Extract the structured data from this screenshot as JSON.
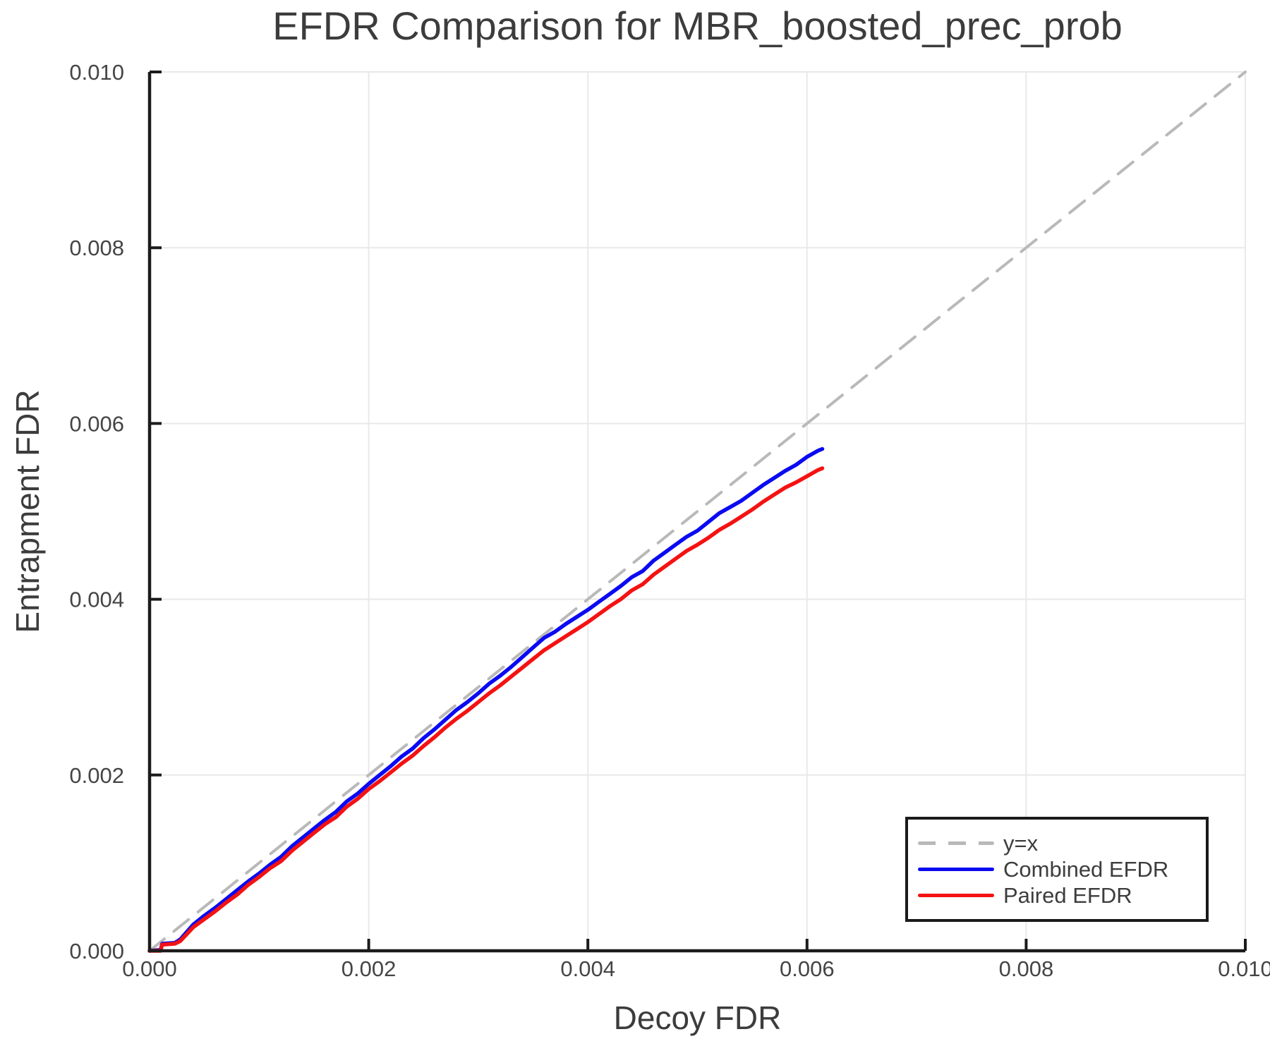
{
  "page": {
    "background": "#ffffff"
  },
  "chart_data": {
    "type": "line",
    "title": "EFDR Comparison for MBR_boosted_prec_prob",
    "xlabel": "Decoy FDR",
    "ylabel": "Entrapment FDR",
    "xlim": [
      0.0,
      0.01
    ],
    "ylim": [
      0.0,
      0.01
    ],
    "grid": true,
    "legend_position": "lower right",
    "xticks": {
      "values": [
        0.0,
        0.002,
        0.004,
        0.006,
        0.008,
        0.01
      ],
      "labels": [
        "0.000",
        "0.002",
        "0.004",
        "0.006",
        "0.008",
        "0.010"
      ]
    },
    "yticks": {
      "values": [
        0.0,
        0.002,
        0.004,
        0.006,
        0.008,
        0.01
      ],
      "labels": [
        "0.000",
        "0.002",
        "0.004",
        "0.006",
        "0.008",
        "0.010"
      ]
    },
    "colors": {
      "grid": "#e9e9e9",
      "spine": "#1b1b1b",
      "tick_label": "#454545",
      "title": "#3c3c3c"
    },
    "series": [
      {
        "name": "y=x",
        "line_style": "dashed",
        "color": "#b9b9b9",
        "points": [
          [
            0.0,
            0.0
          ],
          [
            0.01,
            0.01
          ]
        ]
      },
      {
        "name": "Combined EFDR",
        "line_style": "solid",
        "color": "#0a0af2",
        "points": [
          [
            0.0,
            0.0
          ],
          [
            0.0001,
            1e-05
          ],
          [
            0.000115,
            8e-05
          ],
          [
            0.00023,
            9e-05
          ],
          [
            0.00028,
            0.00013
          ],
          [
            0.0004,
            0.0003
          ],
          [
            0.0005,
            0.0004
          ],
          [
            0.0006,
            0.00049
          ],
          [
            0.0007,
            0.00059
          ],
          [
            0.0008,
            0.00069
          ],
          [
            0.0009,
            0.00079
          ],
          [
            0.001,
            0.00088
          ],
          [
            0.0011,
            0.00098
          ],
          [
            0.0012,
            0.00107
          ],
          [
            0.0013,
            0.00119
          ],
          [
            0.0014,
            0.00129
          ],
          [
            0.0015,
            0.00139
          ],
          [
            0.0016,
            0.00149
          ],
          [
            0.0017,
            0.00158
          ],
          [
            0.0018,
            0.0017
          ],
          [
            0.0019,
            0.00179
          ],
          [
            0.002,
            0.0019
          ],
          [
            0.0021,
            0.002
          ],
          [
            0.0022,
            0.0021
          ],
          [
            0.0023,
            0.00221
          ],
          [
            0.0024,
            0.0023
          ],
          [
            0.0025,
            0.00242
          ],
          [
            0.0026,
            0.00252
          ],
          [
            0.0027,
            0.00263
          ],
          [
            0.0028,
            0.00274
          ],
          [
            0.0029,
            0.00283
          ],
          [
            0.003,
            0.00293
          ],
          [
            0.0031,
            0.00304
          ],
          [
            0.0032,
            0.00313
          ],
          [
            0.0033,
            0.00323
          ],
          [
            0.0034,
            0.00334
          ],
          [
            0.0035,
            0.00345
          ],
          [
            0.0036,
            0.00356
          ],
          [
            0.0037,
            0.00363
          ],
          [
            0.0038,
            0.00372
          ],
          [
            0.0039,
            0.0038
          ],
          [
            0.004,
            0.00388
          ],
          [
            0.0041,
            0.00397
          ],
          [
            0.0042,
            0.00406
          ],
          [
            0.0043,
            0.00415
          ],
          [
            0.0044,
            0.00425
          ],
          [
            0.0045,
            0.00432
          ],
          [
            0.0046,
            0.00444
          ],
          [
            0.0047,
            0.00453
          ],
          [
            0.0048,
            0.00462
          ],
          [
            0.0049,
            0.00471
          ],
          [
            0.005,
            0.00478
          ],
          [
            0.0051,
            0.00488
          ],
          [
            0.0052,
            0.00498
          ],
          [
            0.0053,
            0.00505
          ],
          [
            0.0054,
            0.00512
          ],
          [
            0.0055,
            0.00521
          ],
          [
            0.0056,
            0.0053
          ],
          [
            0.0057,
            0.00538
          ],
          [
            0.0058,
            0.00546
          ],
          [
            0.0059,
            0.00553
          ],
          [
            0.006,
            0.00562
          ],
          [
            0.0061,
            0.00569
          ],
          [
            0.00614,
            0.00571
          ]
        ]
      },
      {
        "name": "Paired EFDR",
        "line_style": "solid",
        "color": "#f41212",
        "points": [
          [
            0.0,
            0.0
          ],
          [
            0.0001,
            0.0
          ],
          [
            0.000115,
            7e-05
          ],
          [
            0.00023,
            8e-05
          ],
          [
            0.00028,
            0.00011
          ],
          [
            0.0004,
            0.00027
          ],
          [
            0.0005,
            0.00036
          ],
          [
            0.0006,
            0.00045
          ],
          [
            0.0007,
            0.00055
          ],
          [
            0.0008,
            0.00064
          ],
          [
            0.0009,
            0.00075
          ],
          [
            0.001,
            0.00084
          ],
          [
            0.0011,
            0.00094
          ],
          [
            0.0012,
            0.00102
          ],
          [
            0.0013,
            0.00114
          ],
          [
            0.0014,
            0.00124
          ],
          [
            0.0015,
            0.00134
          ],
          [
            0.0016,
            0.00144
          ],
          [
            0.0017,
            0.00152
          ],
          [
            0.0018,
            0.00164
          ],
          [
            0.0019,
            0.00173
          ],
          [
            0.002,
            0.00184
          ],
          [
            0.0021,
            0.00193
          ],
          [
            0.0022,
            0.00203
          ],
          [
            0.0023,
            0.00213
          ],
          [
            0.0024,
            0.00222
          ],
          [
            0.0025,
            0.00233
          ],
          [
            0.0026,
            0.00243
          ],
          [
            0.0027,
            0.00254
          ],
          [
            0.0028,
            0.00264
          ],
          [
            0.0029,
            0.00273
          ],
          [
            0.003,
            0.00283
          ],
          [
            0.0031,
            0.00293
          ],
          [
            0.0032,
            0.00302
          ],
          [
            0.0033,
            0.00312
          ],
          [
            0.0034,
            0.00322
          ],
          [
            0.0035,
            0.00332
          ],
          [
            0.0036,
            0.00342
          ],
          [
            0.0037,
            0.0035
          ],
          [
            0.0038,
            0.00358
          ],
          [
            0.0039,
            0.00366
          ],
          [
            0.004,
            0.00374
          ],
          [
            0.0041,
            0.00383
          ],
          [
            0.0042,
            0.00392
          ],
          [
            0.0043,
            0.004
          ],
          [
            0.0044,
            0.0041
          ],
          [
            0.0045,
            0.00417
          ],
          [
            0.0046,
            0.00428
          ],
          [
            0.0047,
            0.00437
          ],
          [
            0.0048,
            0.00446
          ],
          [
            0.0049,
            0.00455
          ],
          [
            0.005,
            0.00462
          ],
          [
            0.0051,
            0.0047
          ],
          [
            0.0052,
            0.00479
          ],
          [
            0.0053,
            0.00486
          ],
          [
            0.0054,
            0.00494
          ],
          [
            0.0055,
            0.00502
          ],
          [
            0.0056,
            0.00511
          ],
          [
            0.0057,
            0.00519
          ],
          [
            0.0058,
            0.00527
          ],
          [
            0.0059,
            0.00533
          ],
          [
            0.006,
            0.0054
          ],
          [
            0.0061,
            0.00547
          ],
          [
            0.00614,
            0.00549
          ]
        ]
      }
    ]
  }
}
